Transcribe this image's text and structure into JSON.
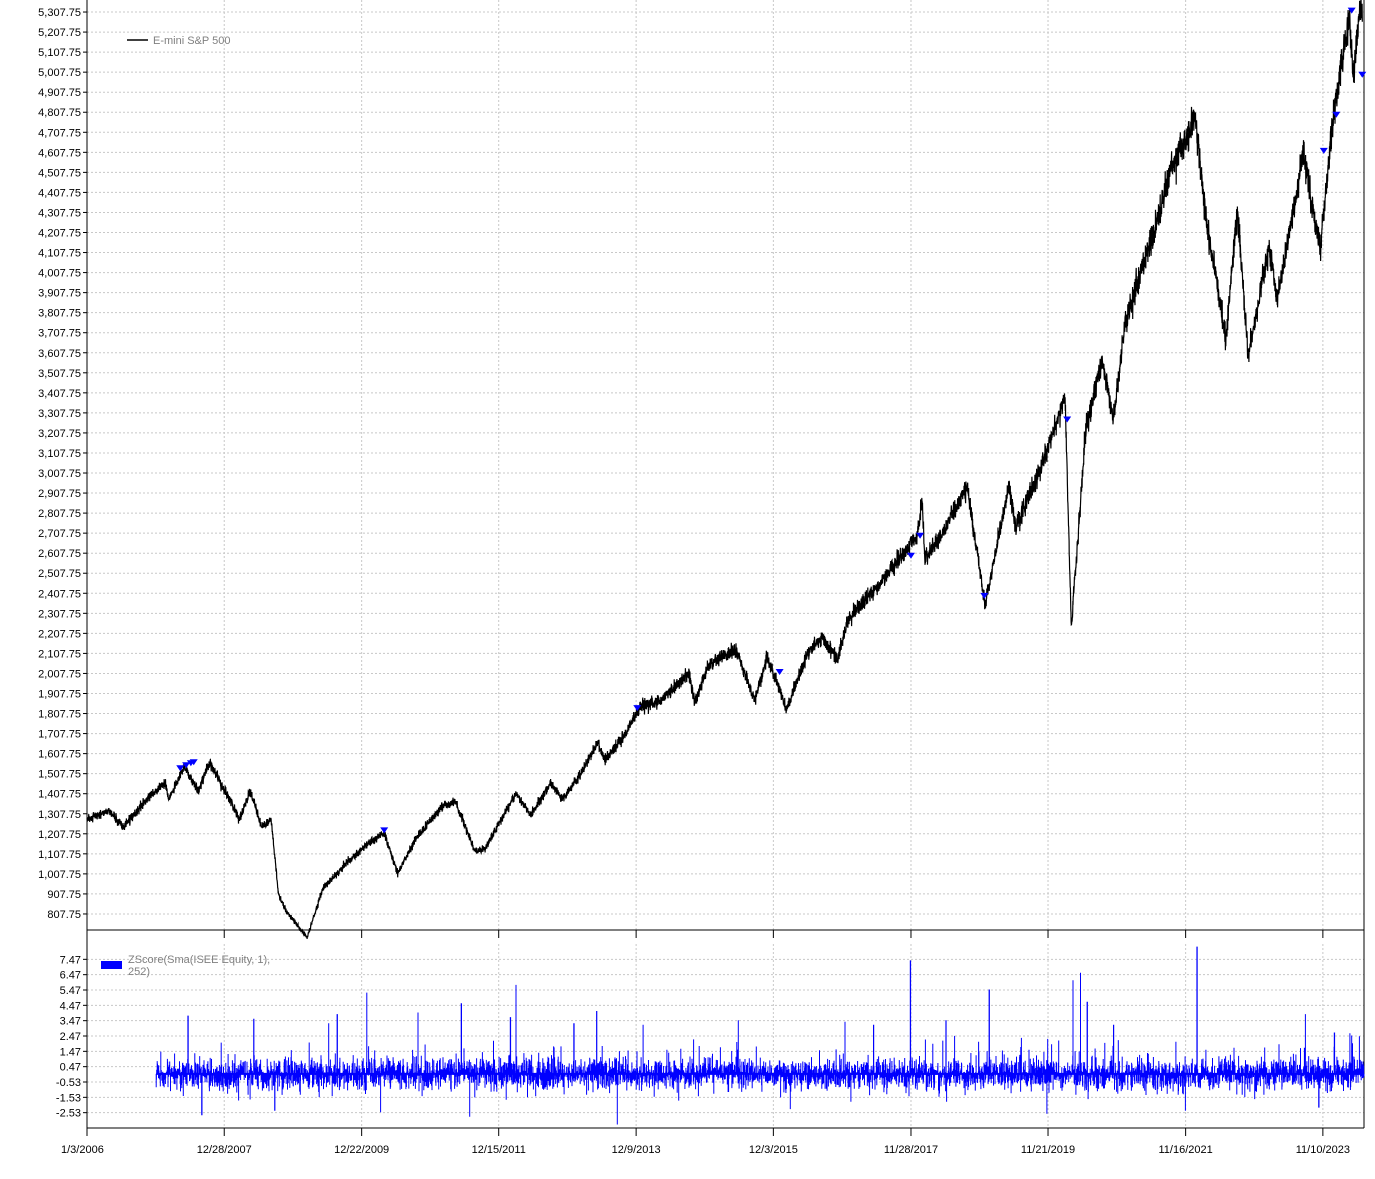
{
  "chart_data": [
    {
      "type": "line",
      "series": [
        {
          "name": "E-mini S&P 500",
          "color": "#000000",
          "x": [
            "2006-01-03",
            "2006-05-01",
            "2006-07-15",
            "2006-12-01",
            "2007-02-20",
            "2007-03-10",
            "2007-06-01",
            "2007-08-15",
            "2007-10-10",
            "2008-01-20",
            "2008-03-15",
            "2008-05-15",
            "2008-07-15",
            "2008-09-01",
            "2008-10-10",
            "2008-11-20",
            "2009-03-09",
            "2009-06-01",
            "2009-10-01",
            "2010-01-15",
            "2010-04-20",
            "2010-07-01",
            "2010-10-01",
            "2011-02-15",
            "2011-04-30",
            "2011-08-10",
            "2011-10-01",
            "2012-03-15",
            "2012-06-01",
            "2012-09-15",
            "2012-11-15",
            "2013-03-01",
            "2013-05-20",
            "2013-06-25",
            "2013-10-01",
            "2013-12-31",
            "2014-04-15",
            "2014-09-15",
            "2014-10-15",
            "2014-12-31",
            "2015-05-20",
            "2015-08-25",
            "2015-11-01",
            "2016-02-11",
            "2016-06-01",
            "2016-08-15",
            "2016-11-05",
            "2016-12-31",
            "2017-06-01",
            "2017-12-31",
            "2018-01-26",
            "2018-02-09",
            "2018-06-01",
            "2018-09-20",
            "2018-12-24",
            "2019-04-30",
            "2019-06-03",
            "2019-10-01",
            "2020-02-19",
            "2020-03-23",
            "2020-06-08",
            "2020-09-02",
            "2020-10-30",
            "2021-01-01",
            "2021-06-01",
            "2021-09-01",
            "2021-12-01",
            "2022-01-03",
            "2022-03-01",
            "2022-06-16",
            "2022-08-16",
            "2022-10-12",
            "2023-02-01",
            "2023-03-13",
            "2023-07-31",
            "2023-10-27",
            "2024-01-02",
            "2024-03-28",
            "2024-04-19",
            "2024-05-20",
            "2024-06-05"
          ],
          "values": [
            1280,
            1325,
            1240,
            1400,
            1460,
            1380,
            1540,
            1420,
            1565,
            1390,
            1280,
            1420,
            1240,
            1280,
            900,
            820,
            690,
            935,
            1060,
            1150,
            1215,
            1010,
            1180,
            1340,
            1370,
            1120,
            1130,
            1410,
            1300,
            1460,
            1380,
            1520,
            1670,
            1570,
            1690,
            1840,
            1870,
            2010,
            1860,
            2060,
            2130,
            1870,
            2090,
            1830,
            2110,
            2190,
            2080,
            2270,
            2440,
            2690,
            2880,
            2580,
            2740,
            2940,
            2350,
            2950,
            2740,
            3000,
            3390,
            2240,
            3230,
            3580,
            3270,
            3760,
            4200,
            4540,
            4700,
            4800,
            4300,
            3680,
            4330,
            3590,
            4140,
            3860,
            4600,
            4120,
            4780,
            5290,
            4980,
            5300,
            5340
          ]
        }
      ],
      "ylim": [
        727.75,
        5367.75
      ],
      "xlim": [
        "2006-01-03",
        "2024-06-14"
      ],
      "y_ticks": [
        "807.75",
        "907.75",
        "1,007.75",
        "1,107.75",
        "1,207.75",
        "1,307.75",
        "1,407.75",
        "1,507.75",
        "1,607.75",
        "1,707.75",
        "1,807.75",
        "1,907.75",
        "2,007.75",
        "2,107.75",
        "2,207.75",
        "2,307.75",
        "2,407.75",
        "2,507.75",
        "2,607.75",
        "2,707.75",
        "2,807.75",
        "2,907.75",
        "3,007.75",
        "3,107.75",
        "3,207.75",
        "3,307.75",
        "3,407.75",
        "3,507.75",
        "3,607.75",
        "3,707.75",
        "3,807.75",
        "3,907.75",
        "4,007.75",
        "4,107.75",
        "4,207.75",
        "4,307.75",
        "4,407.75",
        "4,507.75",
        "4,607.75",
        "4,707.75",
        "4,807.75",
        "4,907.75",
        "5,007.75",
        "5,107.75",
        "5,207.75",
        "5,307.75"
      ],
      "markers": {
        "color": "#0000ff",
        "points": [
          {
            "x": "2007-05-10",
            "y": 1520
          },
          {
            "x": "2007-06-10",
            "y": 1535
          },
          {
            "x": "2007-07-05",
            "y": 1545
          },
          {
            "x": "2007-07-20",
            "y": 1550
          },
          {
            "x": "2010-04-20",
            "y": 1210
          },
          {
            "x": "2013-12-15",
            "y": 1820
          },
          {
            "x": "2016-01-05",
            "y": 2000
          },
          {
            "x": "2017-11-28",
            "y": 2580
          },
          {
            "x": "2018-01-15",
            "y": 2680
          },
          {
            "x": "2018-12-20",
            "y": 2380
          },
          {
            "x": "2020-03-01",
            "y": 3260
          },
          {
            "x": "2023-11-15",
            "y": 4600
          },
          {
            "x": "2024-01-20",
            "y": 4780
          },
          {
            "x": "2024-04-10",
            "y": 5300
          },
          {
            "x": "2024-06-05",
            "y": 4980
          }
        ]
      },
      "legend_position": "top-left",
      "grid": true
    },
    {
      "type": "bar",
      "series": [
        {
          "name": "ZScore(Sma(ISEE Equity, 1), 252)",
          "color": "#0000ff",
          "start": "2007-01-03",
          "end": "2024-06-14",
          "spikes": [
            {
              "x": "2007-06-20",
              "y": 3.8
            },
            {
              "x": "2007-09-01",
              "y": -2.7
            },
            {
              "x": "2008-06-01",
              "y": 3.6
            },
            {
              "x": "2008-09-20",
              "y": -2.4
            },
            {
              "x": "2009-07-01",
              "y": 3.3
            },
            {
              "x": "2009-08-15",
              "y": 3.9
            },
            {
              "x": "2010-01-18",
              "y": 5.3
            },
            {
              "x": "2010-04-01",
              "y": -2.5
            },
            {
              "x": "2010-10-15",
              "y": 4.0
            },
            {
              "x": "2011-06-01",
              "y": 4.6
            },
            {
              "x": "2011-07-15",
              "y": -2.8
            },
            {
              "x": "2012-02-15",
              "y": 3.7
            },
            {
              "x": "2012-03-15",
              "y": 5.8
            },
            {
              "x": "2013-01-15",
              "y": 3.3
            },
            {
              "x": "2013-05-15",
              "y": 4.1
            },
            {
              "x": "2013-09-01",
              "y": -3.3
            },
            {
              "x": "2014-01-15",
              "y": 3.2
            },
            {
              "x": "2015-06-01",
              "y": 3.5
            },
            {
              "x": "2016-03-01",
              "y": -2.3
            },
            {
              "x": "2016-12-15",
              "y": 3.4
            },
            {
              "x": "2017-05-15",
              "y": 3.2
            },
            {
              "x": "2017-11-25",
              "y": 7.4
            },
            {
              "x": "2018-06-01",
              "y": 3.5
            },
            {
              "x": "2019-01-15",
              "y": 5.5
            },
            {
              "x": "2019-11-15",
              "y": -2.6
            },
            {
              "x": "2020-04-01",
              "y": 6.1
            },
            {
              "x": "2020-05-10",
              "y": 6.6
            },
            {
              "x": "2020-06-15",
              "y": 4.7
            },
            {
              "x": "2020-11-01",
              "y": 3.2
            },
            {
              "x": "2021-11-15",
              "y": -2.4
            },
            {
              "x": "2022-01-15",
              "y": 8.3
            },
            {
              "x": "2023-08-10",
              "y": 3.9
            },
            {
              "x": "2023-10-20",
              "y": -2.2
            },
            {
              "x": "2024-01-10",
              "y": 2.7
            },
            {
              "x": "2024-04-10",
              "y": 2.5
            }
          ]
        }
      ],
      "ylim": [
        -3.53,
        8.47
      ],
      "y_ticks": [
        "-2.53",
        "-1.53",
        "-0.53",
        "0.47",
        "1.47",
        "2.47",
        "3.47",
        "4.47",
        "5.47",
        "6.47",
        "7.47"
      ],
      "x_ticks": [
        "1/3/2006",
        "12/28/2007",
        "12/22/2009",
        "12/15/2011",
        "12/9/2013",
        "12/3/2015",
        "11/28/2017",
        "11/21/2019",
        "11/16/2021",
        "11/10/2023"
      ],
      "legend_position": "top-left",
      "grid": true
    }
  ]
}
